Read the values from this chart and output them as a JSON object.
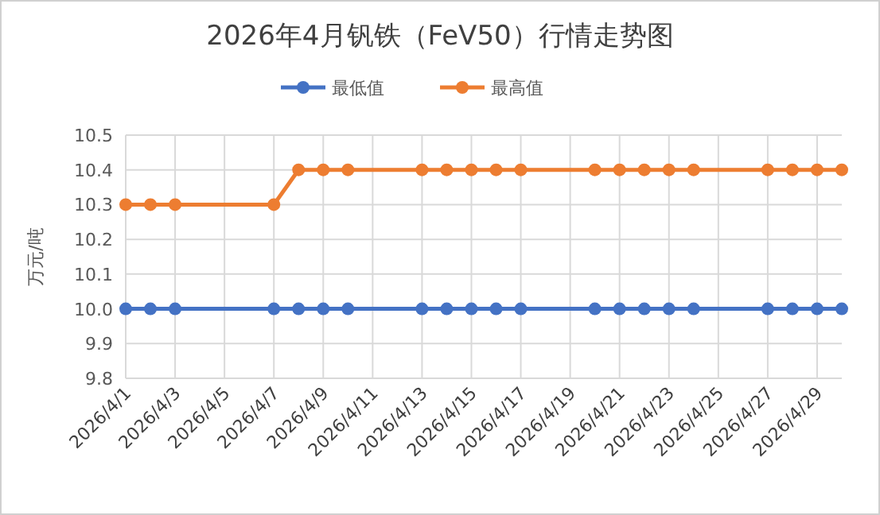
{
  "chart_data": {
    "type": "line",
    "title": "2026年4月钒铁（FeV50）行情走势图",
    "ylabel": "万元/吨",
    "x": [
      "2026-04-01",
      "2026-04-02",
      "2026-04-03",
      "2026-04-07",
      "2026-04-08",
      "2026-04-09",
      "2026-04-10",
      "2026-04-13",
      "2026-04-14",
      "2026-04-15",
      "2026-04-16",
      "2026-04-17",
      "2026-04-20",
      "2026-04-21",
      "2026-04-22",
      "2026-04-23",
      "2026-04-24",
      "2026-04-27",
      "2026-04-28",
      "2026-04-29",
      "2026-04-30"
    ],
    "series": [
      {
        "name": "最低值",
        "color": "#4472c4",
        "values": [
          10.0,
          10.0,
          10.0,
          10.0,
          10.0,
          10.0,
          10.0,
          10.0,
          10.0,
          10.0,
          10.0,
          10.0,
          10.0,
          10.0,
          10.0,
          10.0,
          10.0,
          10.0,
          10.0,
          10.0,
          10.0
        ]
      },
      {
        "name": "最高值",
        "color": "#ed7d31",
        "values": [
          10.3,
          10.3,
          10.3,
          10.3,
          10.4,
          10.4,
          10.4,
          10.4,
          10.4,
          10.4,
          10.4,
          10.4,
          10.4,
          10.4,
          10.4,
          10.4,
          10.4,
          10.4,
          10.4,
          10.4,
          10.4
        ]
      }
    ],
    "xlim": [
      "2026-04-01",
      "2026-04-30"
    ],
    "xticks": [
      {
        "value": "2026-04-01",
        "label": "2026/4/1"
      },
      {
        "value": "2026-04-03",
        "label": "2026/4/3"
      },
      {
        "value": "2026-04-05",
        "label": "2026/4/5"
      },
      {
        "value": "2026-04-07",
        "label": "2026/4/7"
      },
      {
        "value": "2026-04-09",
        "label": "2026/4/9"
      },
      {
        "value": "2026-04-11",
        "label": "2026/4/11"
      },
      {
        "value": "2026-04-13",
        "label": "2026/4/13"
      },
      {
        "value": "2026-04-15",
        "label": "2026/4/15"
      },
      {
        "value": "2026-04-17",
        "label": "2026/4/17"
      },
      {
        "value": "2026-04-19",
        "label": "2026/4/19"
      },
      {
        "value": "2026-04-21",
        "label": "2026/4/21"
      },
      {
        "value": "2026-04-23",
        "label": "2026/4/23"
      },
      {
        "value": "2026-04-25",
        "label": "2026/4/25"
      },
      {
        "value": "2026-04-27",
        "label": "2026/4/27"
      },
      {
        "value": "2026-04-29",
        "label": "2026/4/29"
      }
    ],
    "ylim": [
      9.8,
      10.5
    ],
    "yticks": [
      {
        "value": 9.8,
        "label": "9.8"
      },
      {
        "value": 9.9,
        "label": "9.9"
      },
      {
        "value": 10.0,
        "label": "10.0"
      },
      {
        "value": 10.1,
        "label": "10.1"
      },
      {
        "value": 10.2,
        "label": "10.2"
      },
      {
        "value": 10.3,
        "label": "10.3"
      },
      {
        "value": 10.4,
        "label": "10.4"
      },
      {
        "value": 10.5,
        "label": "10.5"
      }
    ],
    "grid": true,
    "legend": "top",
    "marker": "circle",
    "line_style": "solid"
  }
}
